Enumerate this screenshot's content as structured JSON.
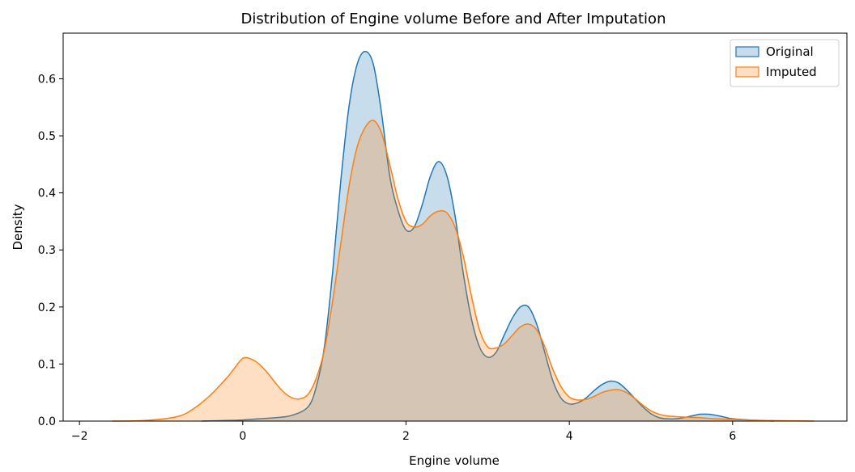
{
  "chart_data": {
    "type": "area",
    "title": "Distribution of Engine volume Before and After Imputation",
    "xlabel": "Engine volume",
    "ylabel": "Density",
    "xlim": [
      -2.2,
      7.4
    ],
    "ylim": [
      0,
      0.68
    ],
    "xticks": [
      -2,
      0,
      2,
      4,
      6
    ],
    "xtick_labels": [
      "−2",
      "0",
      "2",
      "4",
      "6"
    ],
    "yticks": [
      0.0,
      0.1,
      0.2,
      0.3,
      0.4,
      0.5,
      0.6
    ],
    "ytick_labels": [
      "0.0",
      "0.1",
      "0.2",
      "0.3",
      "0.4",
      "0.5",
      "0.6"
    ],
    "grid": false,
    "legend_position": "top-right",
    "series": [
      {
        "name": "Original",
        "color": "#1f77b4",
        "x": [
          -0.5,
          -0.2,
          0,
          0.2,
          0.4,
          0.6,
          0.8,
          0.9,
          1.0,
          1.1,
          1.2,
          1.3,
          1.4,
          1.5,
          1.6,
          1.7,
          1.8,
          1.9,
          2.0,
          2.1,
          2.2,
          2.3,
          2.4,
          2.5,
          2.6,
          2.7,
          2.8,
          2.9,
          3.0,
          3.1,
          3.2,
          3.3,
          3.4,
          3.5,
          3.6,
          3.7,
          3.8,
          3.9,
          4.0,
          4.1,
          4.2,
          4.3,
          4.4,
          4.5,
          4.6,
          4.7,
          4.8,
          4.9,
          5.0,
          5.1,
          5.2,
          5.3,
          5.4,
          5.5,
          5.6,
          5.7,
          5.8,
          5.9,
          6.0,
          6.2,
          6.5
        ],
        "y": [
          0.0,
          0.001,
          0.002,
          0.004,
          0.006,
          0.01,
          0.025,
          0.06,
          0.13,
          0.26,
          0.42,
          0.55,
          0.625,
          0.648,
          0.625,
          0.54,
          0.43,
          0.37,
          0.335,
          0.34,
          0.38,
          0.43,
          0.455,
          0.43,
          0.36,
          0.26,
          0.18,
          0.13,
          0.112,
          0.12,
          0.15,
          0.18,
          0.2,
          0.2,
          0.17,
          0.12,
          0.07,
          0.04,
          0.03,
          0.032,
          0.04,
          0.053,
          0.064,
          0.07,
          0.067,
          0.055,
          0.04,
          0.025,
          0.013,
          0.006,
          0.004,
          0.004,
          0.006,
          0.009,
          0.012,
          0.012,
          0.01,
          0.007,
          0.004,
          0.002,
          0.0
        ]
      },
      {
        "name": "Imputed",
        "color": "#ff7f0e",
        "x": [
          -1.6,
          -1.2,
          -0.8,
          -0.6,
          -0.4,
          -0.2,
          -0.1,
          0,
          0.1,
          0.2,
          0.3,
          0.4,
          0.5,
          0.6,
          0.7,
          0.8,
          0.9,
          1.0,
          1.1,
          1.2,
          1.3,
          1.4,
          1.5,
          1.6,
          1.7,
          1.8,
          1.9,
          2.0,
          2.1,
          2.2,
          2.3,
          2.4,
          2.5,
          2.6,
          2.7,
          2.8,
          2.9,
          3.0,
          3.1,
          3.2,
          3.3,
          3.4,
          3.5,
          3.6,
          3.7,
          3.8,
          3.9,
          4.0,
          4.1,
          4.2,
          4.3,
          4.4,
          4.5,
          4.6,
          4.7,
          4.8,
          4.9,
          5.0,
          5.1,
          5.2,
          5.4,
          5.6,
          5.8,
          6.0,
          6.4,
          7.0
        ],
        "y": [
          0.0,
          0.001,
          0.008,
          0.022,
          0.045,
          0.075,
          0.093,
          0.11,
          0.109,
          0.1,
          0.085,
          0.067,
          0.051,
          0.041,
          0.039,
          0.047,
          0.075,
          0.125,
          0.21,
          0.31,
          0.41,
          0.48,
          0.515,
          0.527,
          0.505,
          0.45,
          0.39,
          0.35,
          0.34,
          0.345,
          0.36,
          0.368,
          0.365,
          0.34,
          0.29,
          0.22,
          0.16,
          0.13,
          0.128,
          0.135,
          0.15,
          0.165,
          0.17,
          0.16,
          0.13,
          0.09,
          0.06,
          0.042,
          0.037,
          0.038,
          0.043,
          0.05,
          0.054,
          0.055,
          0.05,
          0.04,
          0.028,
          0.018,
          0.012,
          0.009,
          0.007,
          0.006,
          0.004,
          0.003,
          0.001,
          0.0
        ]
      }
    ]
  }
}
